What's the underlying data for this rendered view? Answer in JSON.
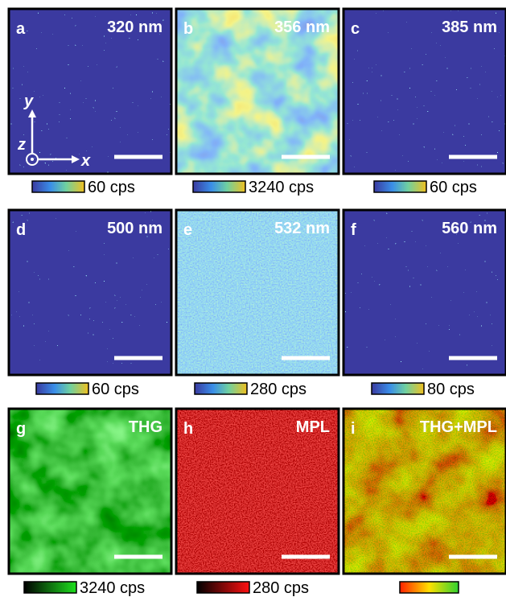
{
  "panels": [
    {
      "letter": "a",
      "label": "320 nm",
      "colorbar_label": "60 cps"
    },
    {
      "letter": "b",
      "label": "356 nm",
      "colorbar_label": "3240 cps"
    },
    {
      "letter": "c",
      "label": "385 nm",
      "colorbar_label": "60 cps"
    },
    {
      "letter": "d",
      "label": "500 nm",
      "colorbar_label": "60 cps"
    },
    {
      "letter": "e",
      "label": "532 nm",
      "colorbar_label": "280 cps"
    },
    {
      "letter": "f",
      "label": "560 nm",
      "colorbar_label": "80 cps"
    },
    {
      "letter": "g",
      "label": "THG",
      "colorbar_label": "3240 cps"
    },
    {
      "letter": "h",
      "label": "MPL",
      "colorbar_label": "280 cps"
    },
    {
      "letter": "i",
      "label": "THG+MPL"
    }
  ],
  "axes": {
    "y": "y",
    "z": "z",
    "x": "x"
  }
}
